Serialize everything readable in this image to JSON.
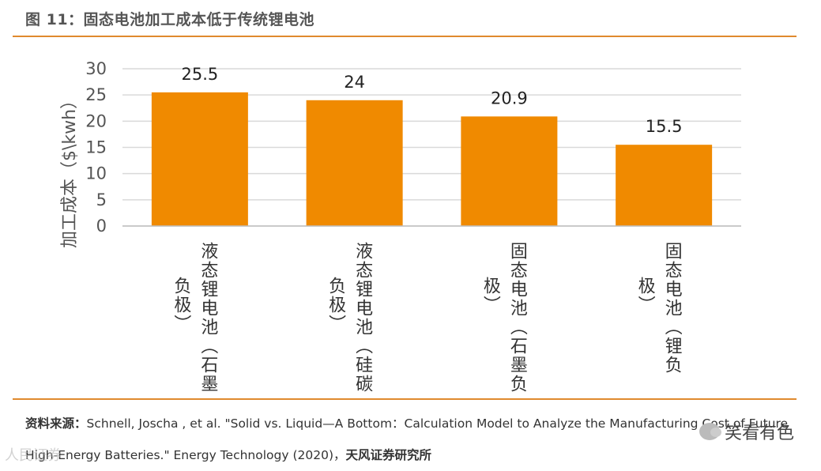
{
  "figure": {
    "title": "图 11：固态电池加工成本低于传统锂电池"
  },
  "chart_data": {
    "type": "bar",
    "title": "",
    "ylabel": "加工成本（$\\kwh）",
    "xlabel": "",
    "ylim": [
      0,
      30
    ],
    "yticks": [
      0,
      5,
      10,
      15,
      20,
      25,
      30
    ],
    "grid": true,
    "bar_color": "#F08A00",
    "categories": [
      [
        "液态锂电池（石墨",
        "负极）"
      ],
      [
        "液态锂电池（硅碳",
        "负极）"
      ],
      [
        "固态电池（石墨负",
        "极）"
      ],
      [
        "固态电池（锂负",
        "极）"
      ]
    ],
    "values": [
      25.5,
      24,
      20.9,
      15.5
    ],
    "value_labels": [
      "25.5",
      "24",
      "20.9",
      "15.5"
    ]
  },
  "source": {
    "label": "资料来源：",
    "citation": "Schnell, Joscha , et al. \"Solid vs. Liquid—A Bottom：Calculation Model to Analyze the Manufacturing Cost of Future High-Energy Batteries.\" Energy Technology (2020)，",
    "org": "天风证券研究所"
  },
  "watermark": {
    "text": "笑看有色",
    "corner_text": "人民证券"
  }
}
